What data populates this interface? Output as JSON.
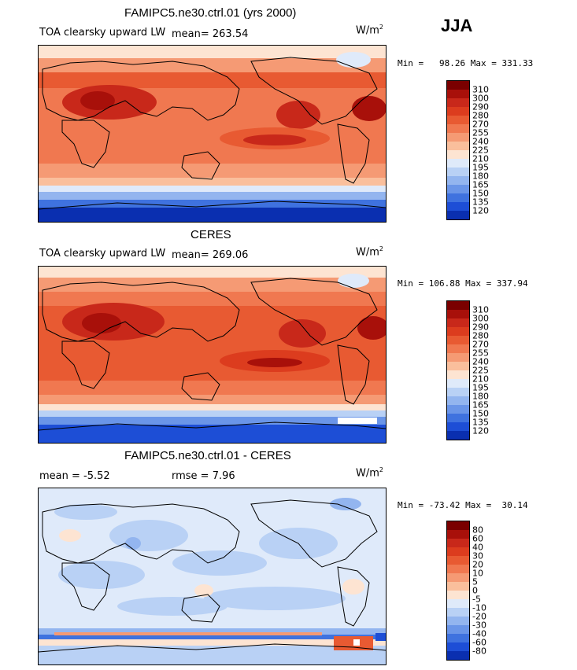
{
  "season": "JJA",
  "units_label": "W/m",
  "units_exp": "2",
  "panels": [
    {
      "title": "FAMIPC5.ne30.ctrl.01 (yrs 2000)",
      "left_label": "TOA clearsky upward LW",
      "stat_label": "mean= 263.54",
      "minmax": "Min =   98.26 Max = 331.33",
      "colorbar": "abs"
    },
    {
      "title": "CERES",
      "left_label": "TOA clearsky upward LW",
      "stat_label": "mean= 269.06",
      "minmax": "Min = 106.88 Max = 337.94",
      "colorbar": "abs"
    },
    {
      "title": "FAMIPC5.ne30.ctrl.01 - CERES",
      "left_label": "mean =   -5.52",
      "stat_label": "rmse =    7.96",
      "minmax": "Min = -73.42 Max =  30.14",
      "colorbar": "diff"
    }
  ],
  "colorbars": {
    "abs": {
      "labels": [
        "310",
        "300",
        "290",
        "280",
        "270",
        "255",
        "240",
        "225",
        "210",
        "195",
        "180",
        "165",
        "150",
        "135",
        "120"
      ],
      "colors": [
        "#7a0000",
        "#a8100a",
        "#c8281a",
        "#dc3c1e",
        "#e85a32",
        "#f07850",
        "#f59a74",
        "#fabf9c",
        "#fde4d2",
        "#dfeafa",
        "#b9d1f5",
        "#93b5ef",
        "#6a95e8",
        "#3f72df",
        "#1d4ed6",
        "#0a2fb0"
      ]
    },
    "diff": {
      "labels": [
        "80",
        "60",
        "40",
        "30",
        "20",
        "10",
        "5",
        "0",
        "-5",
        "-10",
        "-20",
        "-30",
        "-40",
        "-60",
        "-80"
      ],
      "colors": [
        "#7a0000",
        "#a8100a",
        "#c8281a",
        "#dc3c1e",
        "#e85a32",
        "#f07850",
        "#f59a74",
        "#fabf9c",
        "#fde4d2",
        "#dfeafa",
        "#b9d1f5",
        "#93b5ef",
        "#6a95e8",
        "#3f72df",
        "#1d4ed6",
        "#0a2fb0"
      ]
    }
  }
}
